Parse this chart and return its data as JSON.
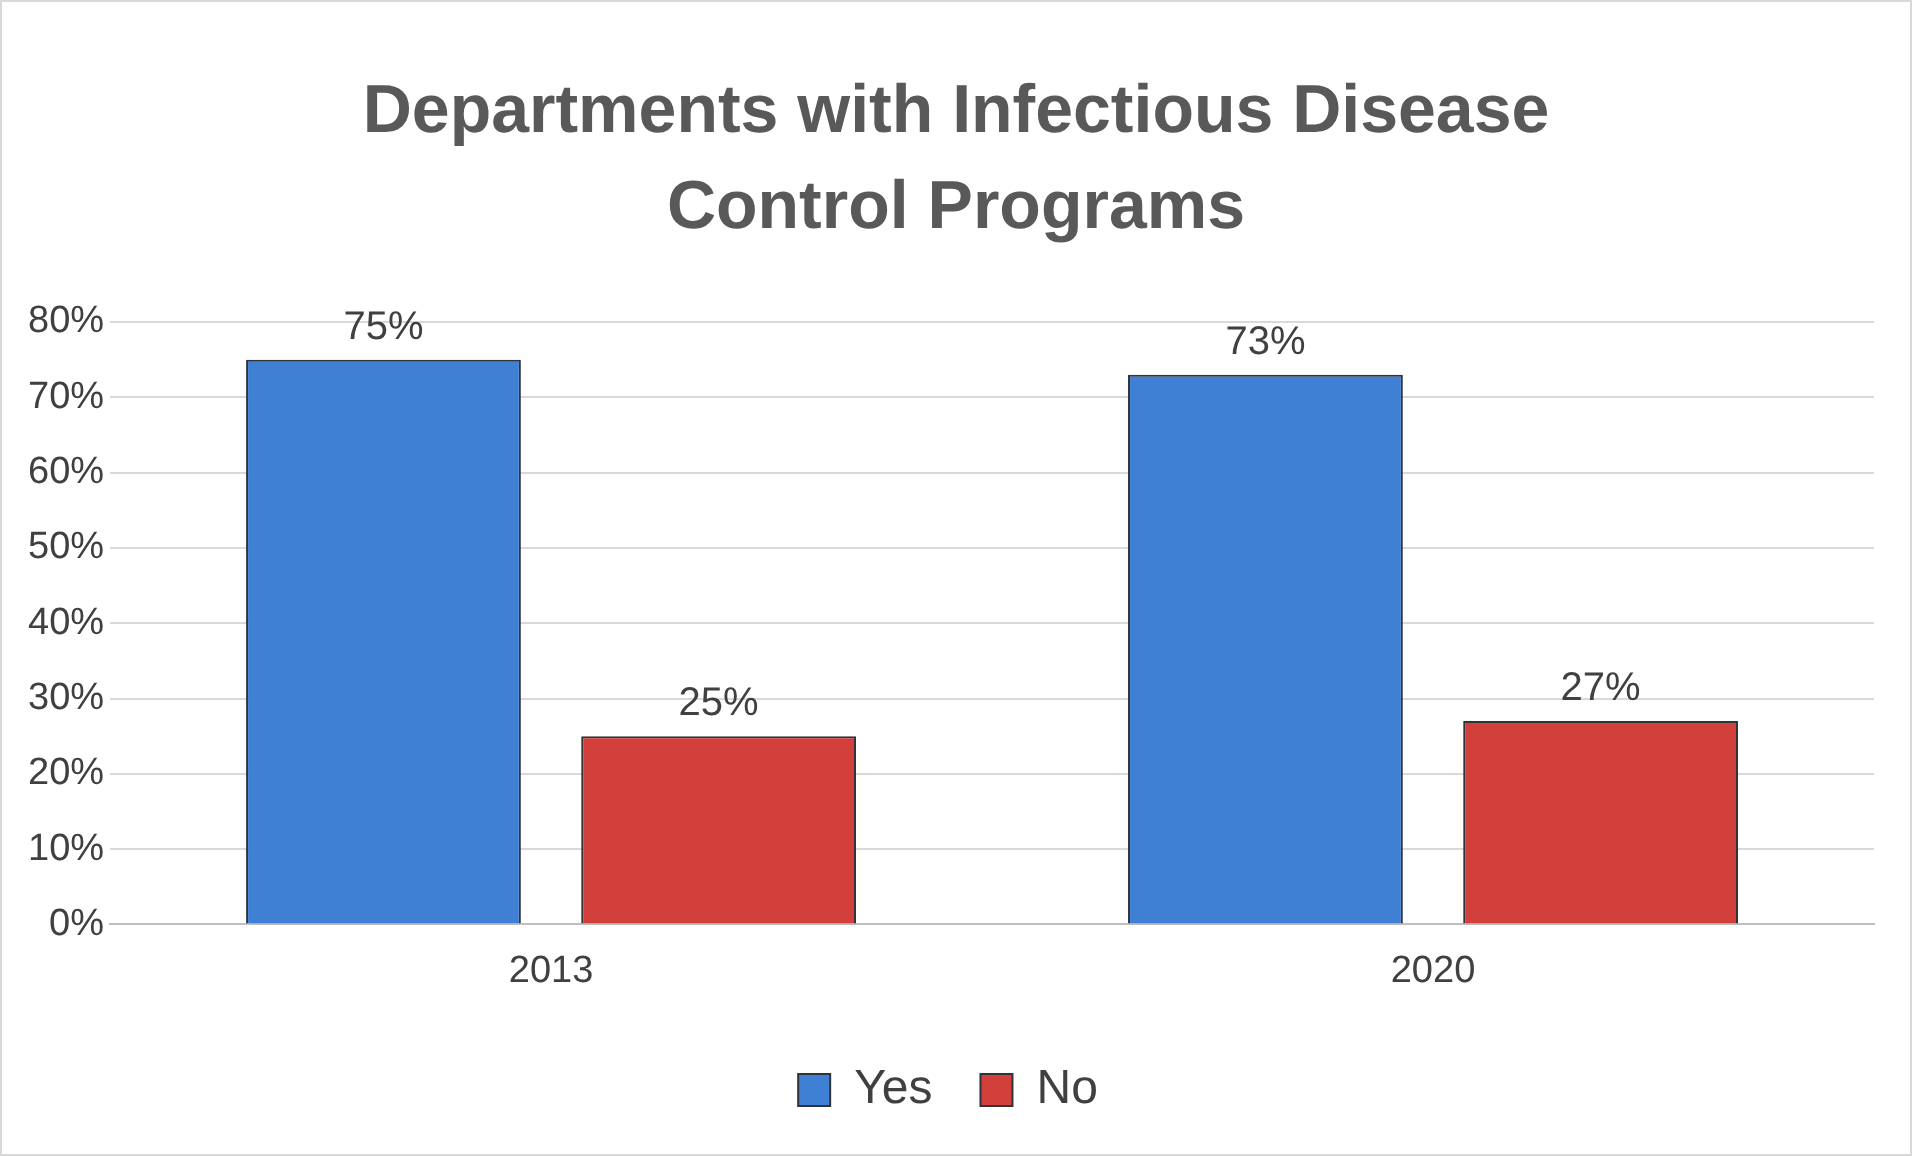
{
  "chart_data": {
    "type": "bar",
    "title": "Departments with Infectious Disease Control Programs",
    "categories": [
      "2013",
      "2020"
    ],
    "series": [
      {
        "name": "Yes",
        "color": "#3f7fd4",
        "values": [
          75,
          73
        ],
        "value_labels": [
          "75%",
          "73%"
        ]
      },
      {
        "name": "No",
        "color": "#d33f3a",
        "values": [
          25,
          27
        ],
        "value_labels": [
          "25%",
          "27%"
        ]
      }
    ],
    "ylim": [
      0,
      80
    ],
    "yticks": [
      {
        "value": 0,
        "label": "0%"
      },
      {
        "value": 10,
        "label": "10%"
      },
      {
        "value": 20,
        "label": "20%"
      },
      {
        "value": 30,
        "label": "30%"
      },
      {
        "value": 40,
        "label": "40%"
      },
      {
        "value": 50,
        "label": "50%"
      },
      {
        "value": 60,
        "label": "60%"
      },
      {
        "value": 70,
        "label": "70%"
      },
      {
        "value": 80,
        "label": "80%"
      }
    ],
    "grid": "y",
    "legend": "bottom"
  }
}
